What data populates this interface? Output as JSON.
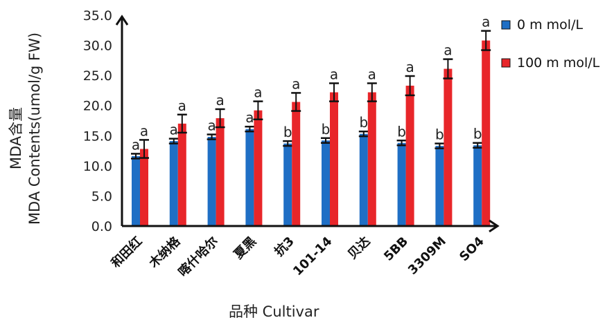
{
  "chart_data": {
    "type": "bar",
    "ylabel_line1": "MDA含量",
    "ylabel_line2": "MDA Contents(umol/g FW)",
    "xlabel": "品种 Cultivar",
    "ylim": [
      0,
      35
    ],
    "yticks": [
      "0.0",
      "5.0",
      "10.0",
      "15.0",
      "20.0",
      "25.0",
      "30.0",
      "35.0"
    ],
    "ytick_values": [
      0,
      5,
      10,
      15,
      20,
      25,
      30,
      35
    ],
    "legend_position": "top-right",
    "categories": [
      "和田红",
      "木纳格",
      "喀什哈尔",
      "夏黑",
      "抗3",
      "101-14",
      "贝达",
      "5BB",
      "3309M",
      "SO4"
    ],
    "series": [
      {
        "name": "0 m mol/L",
        "color": "#1f6fc5",
        "values": [
          11.6,
          14.1,
          14.8,
          16.1,
          13.7,
          14.2,
          15.3,
          13.8,
          13.3,
          13.4
        ],
        "errors": [
          0.4,
          0.4,
          0.4,
          0.4,
          0.4,
          0.4,
          0.4,
          0.4,
          0.4,
          0.4
        ],
        "sig": [
          "a",
          "a",
          "a",
          "a",
          "b",
          "b",
          "b",
          "b",
          "b",
          "b"
        ]
      },
      {
        "name": "100 m mol/L",
        "color": "#e8262a",
        "values": [
          12.8,
          17.0,
          17.9,
          19.2,
          20.6,
          22.2,
          22.2,
          23.3,
          26.1,
          30.8
        ],
        "errors": [
          1.5,
          1.5,
          1.5,
          1.5,
          1.5,
          1.5,
          1.5,
          1.6,
          1.6,
          1.6
        ],
        "sig": [
          "a",
          "a",
          "a",
          "a",
          "a",
          "a",
          "a",
          "a",
          "a",
          "a"
        ]
      }
    ]
  }
}
